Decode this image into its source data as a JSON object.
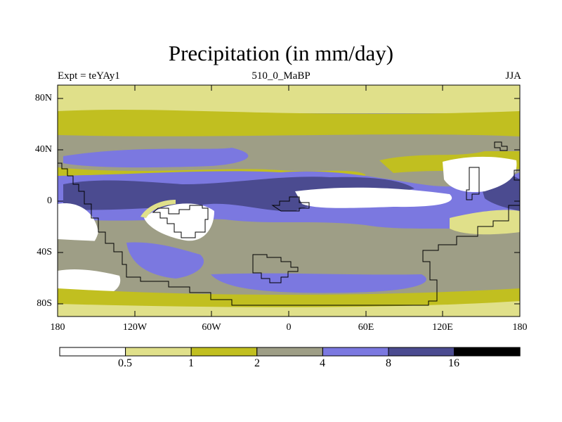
{
  "title": "Precipitation (in mm/day)",
  "experiment_label": "Expt = teYAy1",
  "time_label": "510_0_MaBP",
  "season_label": "JJA",
  "lat_ticks": [
    "80N",
    "40N",
    "0",
    "40S",
    "80S"
  ],
  "lon_ticks": [
    "180",
    "120W",
    "60W",
    "0",
    "60E",
    "120E",
    "180"
  ],
  "colorbar": {
    "levels": [
      "0.5",
      "1",
      "2",
      "4",
      "8",
      "16"
    ],
    "colors": [
      "#ffffff",
      "#e0e08a",
      "#c1bf20",
      "#9e9e86",
      "#7b78e0",
      "#4b4b90",
      "#000000"
    ]
  }
}
